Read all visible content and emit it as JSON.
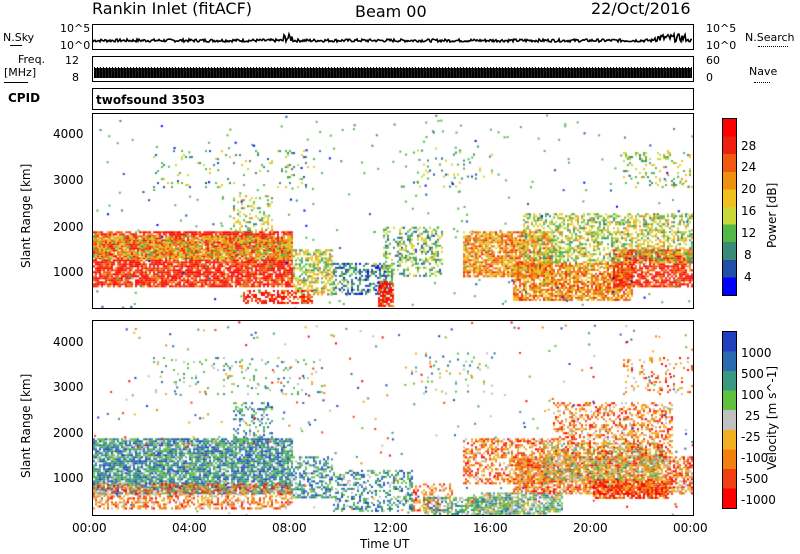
{
  "header": {
    "station": "Rankin Inlet (fitACF)",
    "beam": "Beam 00",
    "date": "22/Oct/2016"
  },
  "top_panels": {
    "nsky_label": "N.Sky",
    "nsearch_label": "N.Search",
    "noise_ticks_left": [
      "10^5",
      "10^0"
    ],
    "noise_ticks_right": [
      "10^5",
      "10^0"
    ],
    "freq_label": "Freq.",
    "freq_unit": "[MHz]",
    "freq_ticks": [
      "12",
      "8"
    ],
    "nave_label": "Nave",
    "nave_ticks": [
      "60",
      "0"
    ],
    "cpid_label": "CPID",
    "cpid_value": "twofsound 3503"
  },
  "colors": {
    "power_scale": [
      "#0000ff",
      "#1f4fa8",
      "#3a8a78",
      "#52b848",
      "#c8d83a",
      "#f0c020",
      "#f09010",
      "#f05a10",
      "#f02010",
      "#ff0000"
    ],
    "velocity_scale": [
      "#2040c0",
      "#2a6ab0",
      "#3a9a80",
      "#60c040",
      "#c0c0c0",
      "#f0b020",
      "#f08010",
      "#f04010",
      "#ff0000"
    ]
  },
  "chart_data": [
    {
      "type": "heatmap",
      "ylabel": "Slant Range [km]",
      "y_ticks": [
        "1000",
        "2000",
        "3000",
        "4000"
      ],
      "ylim": [
        200,
        4500
      ],
      "xlim": [
        "00:00",
        "24:00"
      ],
      "colorbar_label": "Power [dB]",
      "colorbar_ticks": [
        "4",
        "8",
        "12",
        "16",
        "20",
        "24",
        "28"
      ],
      "clim": [
        0,
        32
      ]
    },
    {
      "type": "heatmap",
      "ylabel": "Slant Range [km]",
      "y_ticks": [
        "1000",
        "2000",
        "3000",
        "4000"
      ],
      "ylim": [
        200,
        4500
      ],
      "xlim": [
        "00:00",
        "24:00"
      ],
      "x_ticks": [
        "00:00",
        "04:00",
        "08:00",
        "12:00",
        "16:00",
        "20:00",
        "00:00"
      ],
      "xlabel": "Time UT",
      "colorbar_label": "Velocity [m s^-1]",
      "colorbar_ticks": [
        "1000",
        "500",
        "100",
        "25",
        "-25",
        "-100",
        "-500",
        "-1000"
      ]
    }
  ]
}
